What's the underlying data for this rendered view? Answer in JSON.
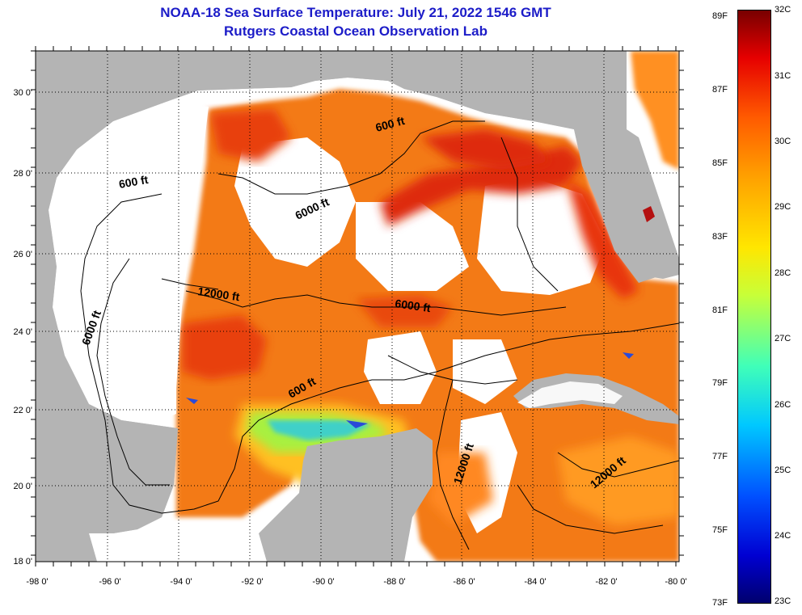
{
  "header": {
    "title": "NOAA-18 Sea Surface Temperature:  July 21, 2022 1546 GMT",
    "subtitle": "Rutgers Coastal Ocean Observation Lab"
  },
  "map": {
    "lat_labels": [
      "30 0'",
      "28 0'",
      "26 0'",
      "24 0'",
      "22 0'",
      "20 0'",
      "18 0'"
    ],
    "lon_labels": [
      "-98 0'",
      "-96 0'",
      "-94 0'",
      "-92 0'",
      "-90 0'",
      "-88 0'",
      "-86 0'",
      "-84 0'",
      "-82 0'",
      "-80 0'"
    ],
    "contour_labels": [
      "600 ft",
      "600 ft",
      "6000 ft",
      "12000 ft",
      "6000 ft",
      "6000 ft",
      "600 ft",
      "12000 ft",
      "12000 ft"
    ],
    "colors": {
      "land": "#b4b4b4",
      "no_data": "#ffffff",
      "warm": "#f06a10",
      "hot": "#d82010",
      "cool": "#40c8c0"
    }
  },
  "colorbar": {
    "fahrenheit_labels": [
      "89F",
      "87F",
      "85F",
      "83F",
      "81F",
      "79F",
      "77F",
      "75F",
      "73F"
    ],
    "celsius_labels": [
      "32C",
      "31C",
      "30C",
      "29C",
      "28C",
      "27C",
      "26C",
      "25C",
      "24C",
      "23C"
    ]
  }
}
